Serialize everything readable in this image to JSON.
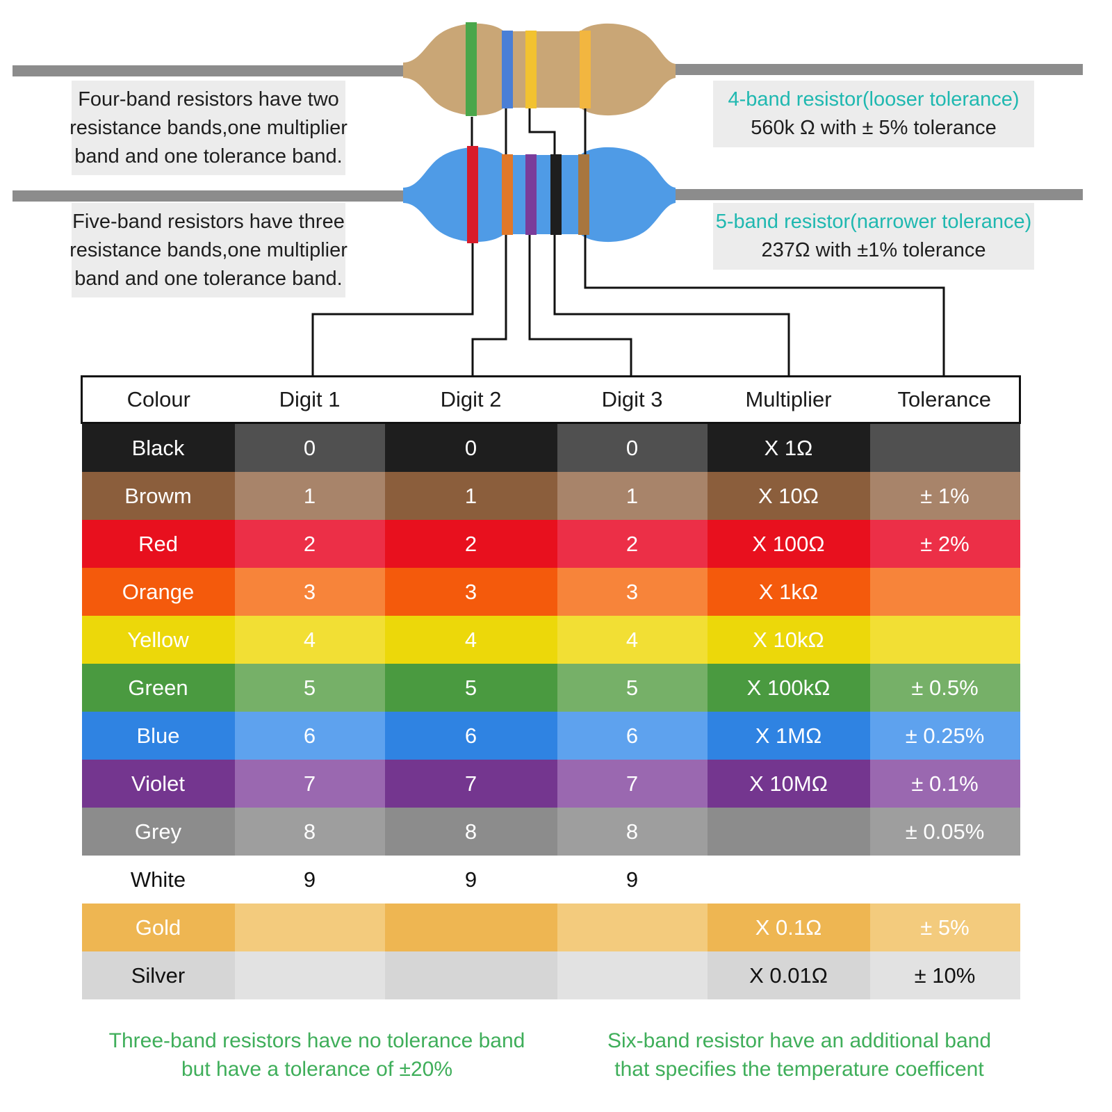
{
  "resistors": {
    "four_band": {
      "note_lines": [
        "Four-band resistors have two",
        "resistance bands,one multiplier",
        "band and one tolerance band."
      ],
      "title": "4-band resistor(looser tolerance)",
      "value": "560k Ω with ±  5% tolerance",
      "body_color": "#c9a676",
      "band_colors": [
        "#4aa64a",
        "#4a7fd6",
        "#f2c230",
        "#f2b640"
      ]
    },
    "five_band": {
      "note_lines": [
        "Five-band resistors have three",
        "resistance bands,one multiplier",
        "band and one tolerance band."
      ],
      "title": "5-band resistor(narrower tolerance)",
      "value": "237Ω with ±1% tolerance",
      "body_color": "#4f9be6",
      "band_colors": [
        "#d81c2a",
        "#e0782a",
        "#7a3c9a",
        "#1e1e1e",
        "#a8763e"
      ]
    }
  },
  "table": {
    "headers": [
      "Colour",
      "Digit 1",
      "Digit 2",
      "Digit 3",
      "Multiplier",
      "Tolerance"
    ],
    "rows": [
      {
        "colour": "Black",
        "digit1": "0",
        "digit2": "0",
        "digit3": "0",
        "multiplier": "X 1Ω",
        "tolerance": "",
        "dark": "#1e1e1e",
        "light": "#505050",
        "text": "#ffffff"
      },
      {
        "colour": "Browm",
        "digit1": "1",
        "digit2": "1",
        "digit3": "1",
        "multiplier": "X 10Ω",
        "tolerance": "± 1%",
        "dark": "#8b5e3c",
        "light": "#a8846a",
        "text": "#ffffff"
      },
      {
        "colour": "Red",
        "digit1": "2",
        "digit2": "2",
        "digit3": "2",
        "multiplier": "X 100Ω",
        "tolerance": "± 2%",
        "dark": "#e8101e",
        "light": "#ec2f47",
        "text": "#ffffff"
      },
      {
        "colour": "Orange",
        "digit1": "3",
        "digit2": "3",
        "digit3": "3",
        "multiplier": "X 1kΩ",
        "tolerance": "",
        "dark": "#f45a0c",
        "light": "#f7843a",
        "text": "#ffffff"
      },
      {
        "colour": "Yellow",
        "digit1": "4",
        "digit2": "4",
        "digit3": "4",
        "multiplier": "X 10kΩ",
        "tolerance": "",
        "dark": "#ecd80a",
        "light": "#f2df34",
        "text": "#ffffff"
      },
      {
        "colour": "Green",
        "digit1": "5",
        "digit2": "5",
        "digit3": "5",
        "multiplier": "X 100kΩ",
        "tolerance": "± 0.5%",
        "dark": "#4a9a40",
        "light": "#76b068",
        "text": "#ffffff"
      },
      {
        "colour": "Blue",
        "digit1": "6",
        "digit2": "6",
        "digit3": "6",
        "multiplier": "X 1MΩ",
        "tolerance": "± 0.25%",
        "dark": "#2f83e2",
        "light": "#5ea2ee",
        "text": "#ffffff"
      },
      {
        "colour": "Violet",
        "digit1": "7",
        "digit2": "7",
        "digit3": "7",
        "multiplier": "X 10MΩ",
        "tolerance": "± 0.1%",
        "dark": "#74368f",
        "light": "#9a68b0",
        "text": "#ffffff"
      },
      {
        "colour": "Grey",
        "digit1": "8",
        "digit2": "8",
        "digit3": "8",
        "multiplier": "",
        "tolerance": "± 0.05%",
        "dark": "#8c8c8c",
        "light": "#9e9e9e",
        "text": "#ffffff"
      },
      {
        "colour": "White",
        "digit1": "9",
        "digit2": "9",
        "digit3": "9",
        "multiplier": "",
        "tolerance": "",
        "dark": "#ffffff",
        "light": "#ffffff",
        "text": "#111111"
      },
      {
        "colour": "Gold",
        "digit1": "",
        "digit2": "",
        "digit3": "",
        "multiplier": "X 0.1Ω",
        "tolerance": "± 5%",
        "dark": "#eeb652",
        "light": "#f3cb7d",
        "text": "#ffffff"
      },
      {
        "colour": "Silver",
        "digit1": "",
        "digit2": "",
        "digit3": "",
        "multiplier": "X 0.01Ω",
        "tolerance": "± 10%",
        "dark": "#d6d6d6",
        "light": "#e2e2e2",
        "text": "#111111"
      }
    ]
  },
  "footnotes": {
    "three_band": [
      "Three-band resistors have no tolerance band",
      "but have a tolerance of ±20%"
    ],
    "six_band": [
      "Six-band resistor have an additional band",
      "that specifies the temperature coefficent"
    ]
  },
  "colors": {
    "teal_text": "#1fb8b0",
    "green_text": "#3fae5a",
    "lead_wire": "#8c8c8c",
    "note_bg": "#ececec"
  }
}
